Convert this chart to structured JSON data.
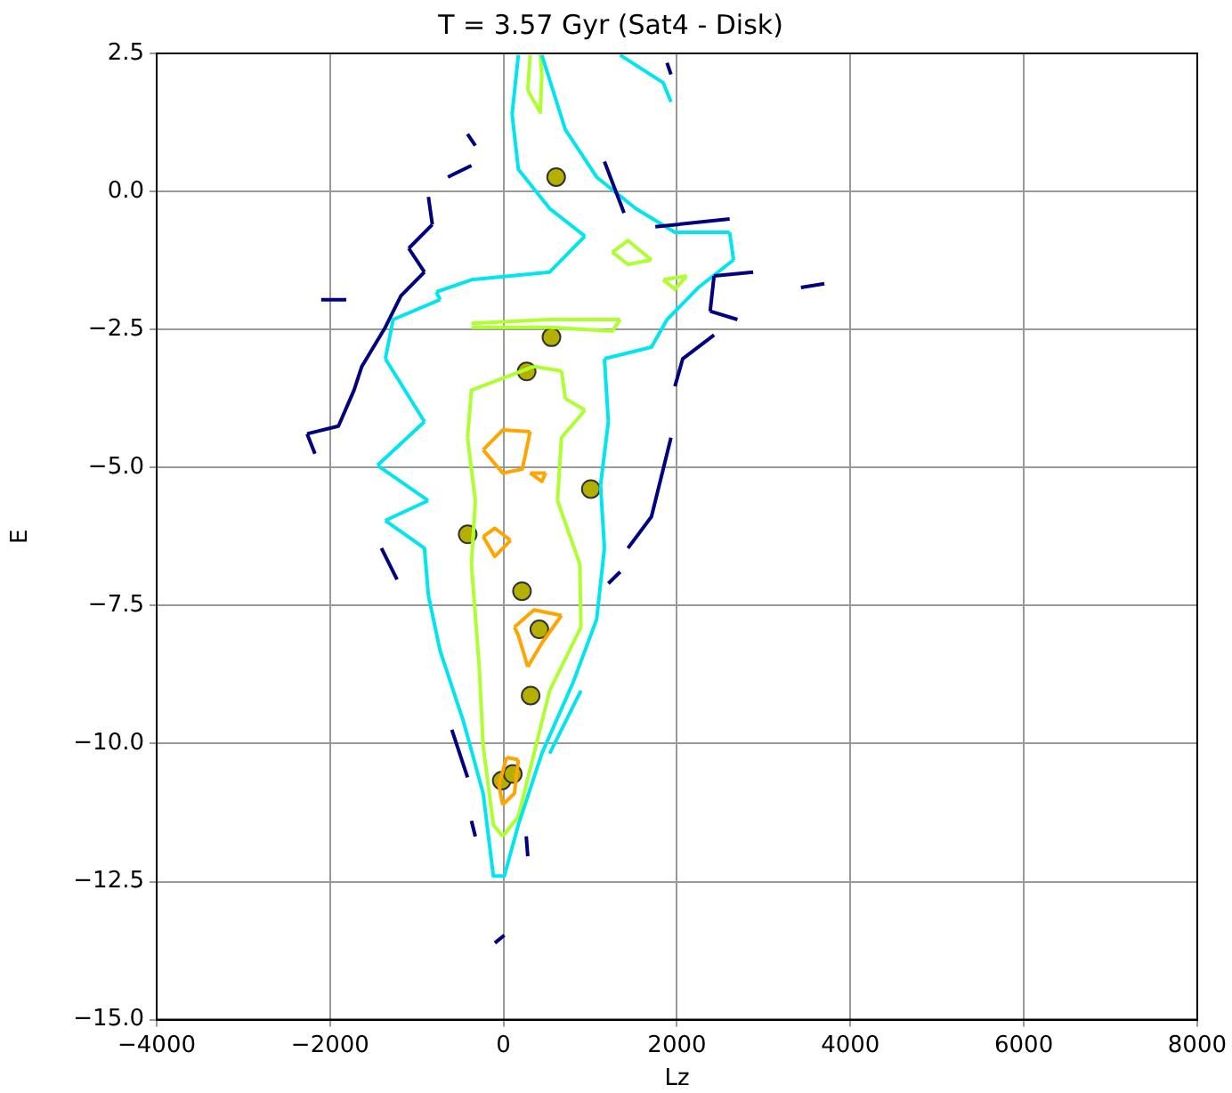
{
  "chart_data": {
    "type": "line",
    "title": "T = 3.57 Gyr (Sat4 - Disk)",
    "xlabel": "Lz",
    "ylabel": "E",
    "xlim": [
      -4000,
      8000
    ],
    "xticks": [
      {
        "value": -4000,
        "label": "−4000"
      },
      {
        "value": -2000,
        "label": "−2000"
      },
      0,
      2000,
      4000,
      6000,
      8000
    ],
    "ylim": [
      -15,
      2.5
    ],
    "yticks": [
      {
        "value": -15,
        "label": "−15.0"
      },
      {
        "value": -12.5,
        "label": "−12.5"
      },
      {
        "value": -10,
        "label": "−10.0"
      },
      {
        "value": -7.5,
        "label": "−7.5"
      },
      {
        "value": -5,
        "label": "−5.0"
      },
      {
        "value": -2.5,
        "label": "−2.5"
      },
      {
        "value": 0,
        "label": "0.0"
      },
      {
        "value": 2.5,
        "label": "2.5"
      }
    ],
    "grid": true,
    "line_style": "solid",
    "marker": "none",
    "series": [
      {
        "color": "#000080",
        "x": [
          -2103,
          -1814,
          null,
          -2265,
          -2175,
          null,
          -2265,
          -1904,
          -1724,
          -1634,
          -1363,
          -1183,
          -912,
          null,
          -1093,
          -912,
          null,
          -1093,
          -821,
          null,
          -866,
          -821,
          null,
          -1408,
          -1228,
          null,
          -596,
          -415,
          null,
          -370,
          -325,
          null,
          262,
          280,
          null,
          -99,
          9,
          null,
          1435,
          1706,
          1931,
          null,
          1977,
          2067,
          2428,
          null,
          1164,
          1390,
          null,
          1751,
          2608,
          null,
          2428,
          2879,
          null,
          2383,
          2428,
          null,
          2383,
          2698,
          null,
          3430,
          3700,
          null,
          1886,
          1931,
          null,
          -641,
          -370,
          null,
          -415,
          -325,
          null,
          1209,
          1345
        ],
        "values": [
          -1.96,
          -1.96,
          null,
          -4.39,
          -4.75,
          null,
          -4.39,
          -4.25,
          -3.6,
          -3.17,
          -2.46,
          -1.89,
          -1.46,
          null,
          -1.03,
          -1.46,
          null,
          -1.03,
          -0.6,
          null,
          -0.1,
          -0.6,
          null,
          -6.46,
          -7.03,
          null,
          -9.75,
          -10.61,
          null,
          -11.4,
          -11.68,
          null,
          -11.68,
          -12.04,
          null,
          -13.61,
          -13.47,
          null,
          -6.46,
          -5.89,
          -4.46,
          null,
          -3.53,
          -3.03,
          -2.6,
          null,
          0.54,
          -0.39,
          null,
          -0.64,
          -0.5,
          null,
          -1.53,
          -1.46,
          null,
          -2.17,
          -1.53,
          null,
          -2.17,
          -2.32,
          null,
          -1.74,
          -1.67,
          null,
          2.33,
          2.12,
          null,
          0.26,
          0.47,
          null,
          1.04,
          0.83,
          null,
          -7.1,
          -6.89
        ]
      },
      {
        "color": "#00e5ee",
        "x": [
          99,
          171,
          null,
          99,
          171,
          532,
          939,
          null,
          -776,
          -370,
          532,
          939,
          null,
          -776,
          -731,
          null,
          -1363,
          -1273,
          -731,
          null,
          -1363,
          -912,
          null,
          -1453,
          -912,
          null,
          -1453,
          -870,
          null,
          -1363,
          -870,
          null,
          -1363,
          -912,
          -866,
          -731,
          -460,
          -235,
          -117,
          9,
          171,
          442,
          803,
          1074,
          1164,
          null,
          1119,
          1164,
          null,
          1119,
          1209,
          null,
          1164,
          1209,
          null,
          1164,
          1706,
          1886,
          2247,
          2653,
          null,
          2608,
          2653,
          null,
          442,
          713,
          1074,
          1525,
          1977,
          2608,
          null,
          1345,
          1841,
          1931,
          null,
          532,
          893
        ],
        "values": [
          1.4,
          2.47,
          null,
          1.4,
          0.4,
          -0.31,
          -0.81,
          null,
          -1.82,
          -1.6,
          -1.46,
          -0.81,
          null,
          -1.82,
          -1.96,
          null,
          -3.03,
          -2.32,
          -1.96,
          null,
          -3.03,
          -4.17,
          null,
          -4.96,
          -4.17,
          null,
          -4.96,
          -5.6,
          null,
          -5.96,
          -5.6,
          null,
          -5.96,
          -6.46,
          -7.32,
          -8.32,
          -9.61,
          -10.9,
          -12.4,
          -12.4,
          -11.47,
          -10.18,
          -8.89,
          -7.75,
          -6.46,
          null,
          -5.32,
          -6.46,
          null,
          -5.32,
          -4.17,
          null,
          -3.03,
          -4.17,
          null,
          -3.03,
          -2.82,
          -2.32,
          -1.74,
          -1.24,
          null,
          -0.74,
          -1.24,
          null,
          2.47,
          1.12,
          0.26,
          -0.31,
          -0.74,
          -0.74,
          null,
          2.47,
          1.97,
          1.62,
          null,
          -10.18,
          -9.04
        ]
      },
      {
        "color": "#adff2f",
        "x": [
          280,
          307,
          null,
          280,
          424,
          442,
          null,
          424,
          442,
          null,
          -415,
          -370,
          352,
          null,
          -415,
          -325,
          null,
          -370,
          -325,
          null,
          -370,
          -280,
          -235,
          -117,
          -9,
          null,
          -9,
          171,
          352,
          532,
          893,
          null,
          880,
          893,
          null,
          623,
          880,
          null,
          623,
          668,
          939,
          null,
          713,
          939,
          null,
          668,
          713,
          null,
          352,
          668,
          null,
          -370,
          532,
          1345,
          null,
          -370,
          532,
          1254,
          1345,
          null,
          1254,
          1435,
          1706,
          null,
          1254,
          1435,
          1706,
          null,
          1841,
          2112,
          null,
          1841,
          1977,
          2112
        ],
        "values": [
          1.83,
          2.47,
          null,
          1.83,
          1.43,
          2.12,
          null,
          2.47,
          2.12,
          null,
          -4.46,
          -3.6,
          -3.17,
          null,
          -4.46,
          -5.6,
          null,
          -6.75,
          -5.6,
          null,
          -6.75,
          -8.61,
          -10.04,
          -11.47,
          -11.68,
          null,
          -11.68,
          -11.32,
          -10.18,
          -9.04,
          -7.89,
          null,
          -6.75,
          -7.89,
          null,
          -5.6,
          -6.75,
          null,
          -5.6,
          -4.46,
          -3.96,
          null,
          -3.75,
          -3.96,
          null,
          -3.25,
          -3.75,
          null,
          -3.17,
          -3.25,
          null,
          -2.39,
          -2.32,
          -2.32,
          null,
          -2.46,
          -2.46,
          -2.53,
          -2.32,
          null,
          -1.1,
          -0.89,
          -1.24,
          null,
          -1.1,
          -1.32,
          -1.24,
          null,
          -1.6,
          -1.53,
          null,
          -1.6,
          -1.77,
          -1.53
        ]
      },
      {
        "color": "#ffa500",
        "x": [
          -235,
          -9,
          307,
          null,
          -235,
          -9,
          217,
          307,
          null,
          307,
          487,
          null,
          307,
          442,
          487,
          null,
          -235,
          -100,
          81,
          null,
          -235,
          -100,
          81,
          null,
          126,
          352,
          668,
          null,
          280,
          442,
          668,
          null,
          126,
          171,
          280,
          null,
          36,
          171,
          null,
          -9,
          126,
          171,
          null,
          -54,
          -9,
          null,
          -54,
          36
        ],
        "values": [
          -4.68,
          -4.32,
          -4.35,
          null,
          -4.68,
          -5.1,
          -5.03,
          -4.35,
          null,
          -5.1,
          -5.1,
          null,
          -5.1,
          -5.25,
          -5.1,
          null,
          -6.25,
          -6.1,
          -6.32,
          null,
          -6.25,
          -6.61,
          -6.32,
          null,
          -7.89,
          -7.58,
          -7.68,
          null,
          -8.61,
          -8.18,
          -7.68,
          null,
          -7.89,
          -8.04,
          -8.61,
          null,
          -10.25,
          -10.29,
          null,
          -11.11,
          -10.9,
          -10.29,
          null,
          -10.75,
          -11.11,
          null,
          -10.75,
          -10.25
        ]
      },
      {
        "type": "scatter",
        "marker": "circle",
        "color": "#b5b000",
        "x": [
          607,
          553,
          267,
          1007,
          -413,
          213,
          413,
          313,
          -20,
          107
        ],
        "values": [
          0.26,
          -2.64,
          -3.26,
          -5.39,
          -6.21,
          -7.24,
          -7.93,
          -9.13,
          -10.67,
          -10.55
        ]
      }
    ]
  }
}
